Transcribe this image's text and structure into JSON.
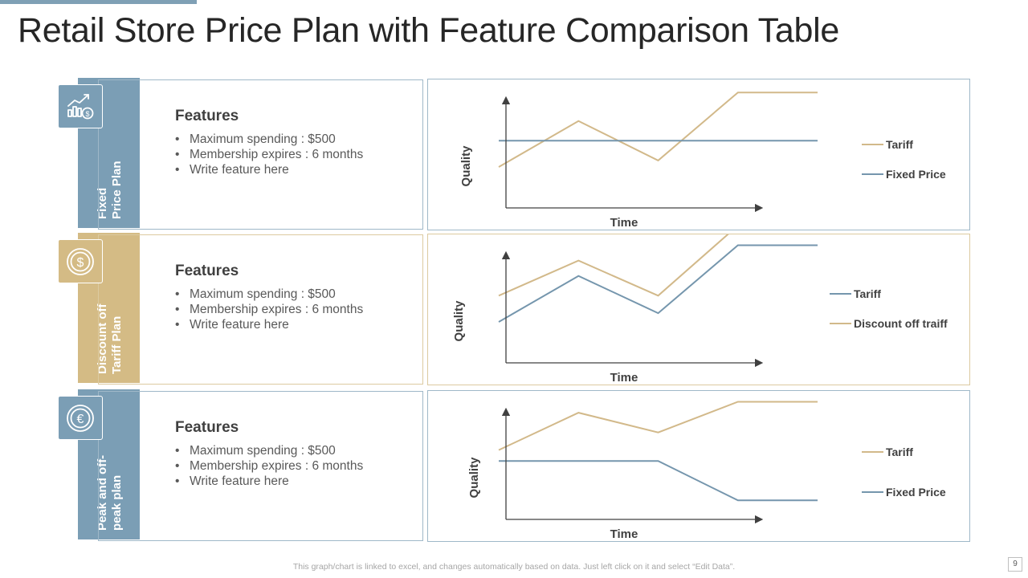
{
  "title": "Retail Store Price Plan with Feature Comparison Table",
  "colors": {
    "blue": "#7b9eb5",
    "gold": "#d4bb85",
    "line_blue": "#7596ad",
    "line_gold": "#d2b98a"
  },
  "plans": [
    {
      "label": "Fixed\nPrice Plan",
      "icon": "chart-dollar-icon",
      "features_title": "Features",
      "features": [
        "Maximum spending : $500",
        "Membership expires : 6 months",
        "Write feature here"
      ]
    },
    {
      "label": "Discount off\nTariff Plan",
      "icon": "dollar-coin-icon",
      "features_title": "Features",
      "features": [
        "Maximum spending : $500",
        "Membership expires : 6 months",
        "Write feature here"
      ]
    },
    {
      "label": "Peak and off-\npeak plan",
      "icon": "euro-coin-icon",
      "features_title": "Features",
      "features": [
        "Maximum spending : $500",
        "Membership expires : 6 months",
        "Write feature here"
      ]
    }
  ],
  "chart_data": [
    {
      "type": "line",
      "xlabel": "Time",
      "ylabel": "Quality",
      "ylim": [
        0,
        100
      ],
      "x": [
        0,
        1,
        2,
        3,
        4
      ],
      "series": [
        {
          "name": "Tariff",
          "color": "#d2b98a",
          "values": [
            15,
            36,
            18,
            49,
            49
          ]
        },
        {
          "name": "Fixed Price",
          "color": "#7596ad",
          "values": [
            27,
            27,
            27,
            27,
            27
          ]
        }
      ]
    },
    {
      "type": "line",
      "xlabel": "Time",
      "ylabel": "Quality",
      "ylim": [
        0,
        100
      ],
      "x": [
        0,
        1,
        2,
        3,
        4
      ],
      "series": [
        {
          "name": "Tariff",
          "color": "#7596ad",
          "values": [
            15,
            36,
            19,
            50,
            50
          ]
        },
        {
          "name": "Discount off traiff",
          "color": "#d2b98a",
          "values": [
            27,
            43,
            27,
            59,
            59
          ]
        }
      ]
    },
    {
      "type": "line",
      "xlabel": "Time",
      "ylabel": "Quality",
      "ylim": [
        0,
        100
      ],
      "x": [
        0,
        1,
        2,
        3,
        4
      ],
      "series": [
        {
          "name": "Tariff",
          "color": "#d2b98a",
          "values": [
            28,
            45,
            36,
            50,
            50
          ]
        },
        {
          "name": "Fixed Price",
          "color": "#7596ad",
          "values": [
            23,
            23,
            23,
            5,
            5
          ]
        }
      ]
    }
  ],
  "footer": "This graph/chart is linked to excel,  and changes automatically based on data. Just left click on it and select “Edit Data”.",
  "page_number": "9"
}
